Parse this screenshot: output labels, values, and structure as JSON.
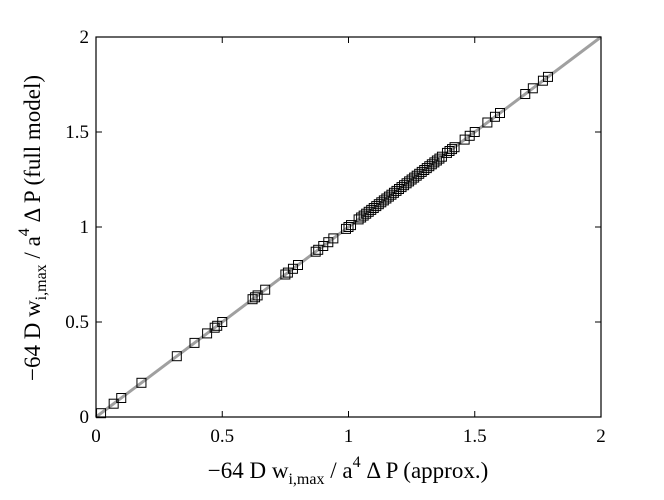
{
  "chart_data": {
    "type": "scatter",
    "xlabel": {
      "pre": "−64 D w",
      "sub": "i,max",
      "mid": " / a",
      "sup": "4",
      "post": " Δ P (approx.)"
    },
    "ylabel": {
      "pre": "−64 D w",
      "sub": "i,max",
      "mid": " / a",
      "sup": "4",
      "post": " Δ P (full model)"
    },
    "xlim": [
      0,
      2
    ],
    "ylim": [
      0,
      2
    ],
    "xticks": [
      "0",
      "0.5",
      "1",
      "1.5",
      "2"
    ],
    "yticks": [
      "0",
      "0.5",
      "1",
      "1.5",
      "2"
    ],
    "grid": false,
    "reference_line": {
      "from": [
        0,
        0
      ],
      "to": [
        2,
        2
      ],
      "color": "#a0a0a0"
    },
    "marker": "square",
    "marker_color": "#000000",
    "series": [
      {
        "x": [
          0.02,
          0.07,
          0.1,
          0.18,
          0.32,
          0.39,
          0.44,
          0.47,
          0.48,
          0.5,
          0.62,
          0.63,
          0.64,
          0.67,
          0.75,
          0.76,
          0.78,
          0.8,
          0.87,
          0.88,
          0.9,
          0.92,
          0.94,
          0.99,
          1.0,
          1.01,
          1.04,
          1.05,
          1.06,
          1.07,
          1.08,
          1.09,
          1.1,
          1.11,
          1.12,
          1.13,
          1.14,
          1.15,
          1.16,
          1.17,
          1.18,
          1.19,
          1.2,
          1.21,
          1.22,
          1.23,
          1.24,
          1.25,
          1.26,
          1.27,
          1.28,
          1.29,
          1.3,
          1.31,
          1.32,
          1.33,
          1.34,
          1.35,
          1.36,
          1.37,
          1.39,
          1.4,
          1.41,
          1.42,
          1.46,
          1.48,
          1.5,
          1.55,
          1.58,
          1.6,
          1.7,
          1.73,
          1.77,
          1.79
        ],
        "y": [
          0.02,
          0.07,
          0.1,
          0.18,
          0.32,
          0.39,
          0.44,
          0.47,
          0.48,
          0.5,
          0.62,
          0.63,
          0.64,
          0.67,
          0.75,
          0.76,
          0.78,
          0.8,
          0.87,
          0.88,
          0.9,
          0.92,
          0.94,
          0.99,
          1.0,
          1.01,
          1.04,
          1.05,
          1.06,
          1.07,
          1.08,
          1.09,
          1.1,
          1.11,
          1.12,
          1.13,
          1.14,
          1.15,
          1.16,
          1.17,
          1.18,
          1.19,
          1.2,
          1.21,
          1.22,
          1.23,
          1.24,
          1.25,
          1.26,
          1.27,
          1.28,
          1.29,
          1.3,
          1.31,
          1.32,
          1.33,
          1.34,
          1.35,
          1.36,
          1.37,
          1.39,
          1.4,
          1.41,
          1.42,
          1.46,
          1.48,
          1.5,
          1.55,
          1.58,
          1.6,
          1.7,
          1.73,
          1.77,
          1.79
        ]
      }
    ]
  }
}
